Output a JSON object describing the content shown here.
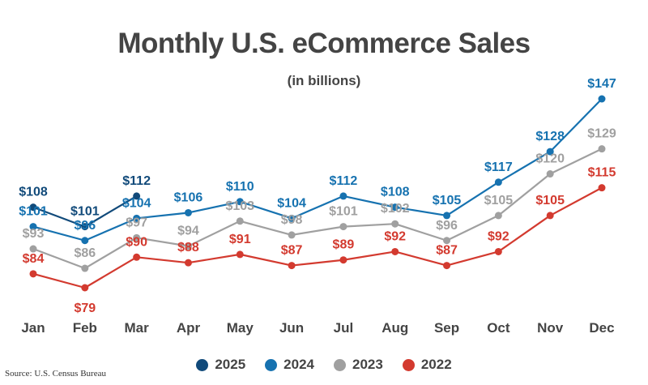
{
  "chart_data": {
    "type": "line",
    "title": "Monthly U.S. eCommerce Sales",
    "subtitle": "(in billions)",
    "xlabel": "",
    "ylabel": "",
    "categories": [
      "Jan",
      "Feb",
      "Mar",
      "Apr",
      "May",
      "Jun",
      "Jul",
      "Aug",
      "Sep",
      "Oct",
      "Nov",
      "Dec"
    ],
    "ylim": [
      70,
      155
    ],
    "grid": false,
    "legend_position": "bottom",
    "value_prefix": "$",
    "series": [
      {
        "name": "2025",
        "color": "#114a7a",
        "values": [
          108,
          101,
          112,
          null,
          null,
          null,
          null,
          null,
          null,
          null,
          null,
          null
        ]
      },
      {
        "name": "2024",
        "color": "#1672b0",
        "values": [
          101,
          96,
          104,
          106,
          110,
          104,
          112,
          108,
          105,
          117,
          128,
          147
        ]
      },
      {
        "name": "2023",
        "color": "#a0a0a0",
        "values": [
          93,
          86,
          97,
          94,
          103,
          98,
          101,
          102,
          96,
          105,
          120,
          129
        ]
      },
      {
        "name": "2022",
        "color": "#d33a2f",
        "values": [
          84,
          79,
          90,
          88,
          91,
          87,
          89,
          92,
          87,
          92,
          105,
          115
        ]
      }
    ]
  },
  "source": "Source: U.S. Census Bureau"
}
